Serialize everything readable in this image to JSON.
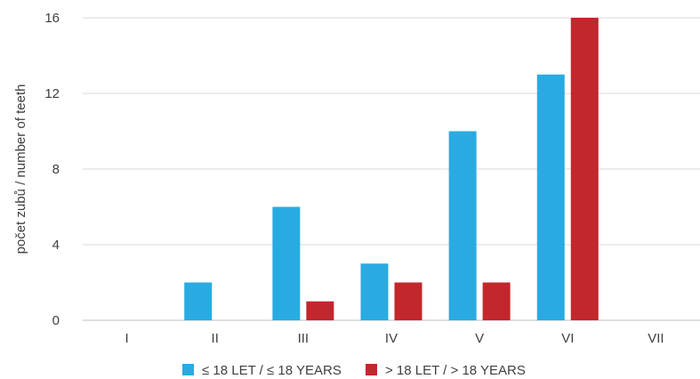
{
  "chart_data": {
    "type": "bar",
    "title": "",
    "xlabel": "",
    "ylabel": "počet zubů / number of teeth",
    "categories": [
      "I",
      "II",
      "III",
      "IV",
      "V",
      "VI",
      "VII"
    ],
    "yticks": [
      "0",
      "4",
      "8",
      "12",
      "16"
    ],
    "ylim": [
      0,
      16
    ],
    "grid": true,
    "legend_position": "bottom",
    "series": [
      {
        "name": "≤ 18 LET / ≤ 18 YEARS",
        "color": "#29abe2",
        "values": [
          0,
          2,
          6,
          3,
          10,
          13,
          0
        ]
      },
      {
        "name": "> 18 LET / > 18 YEARS",
        "color": "#c1272d",
        "values": [
          0,
          0,
          1,
          2,
          2,
          16,
          0
        ]
      }
    ]
  }
}
